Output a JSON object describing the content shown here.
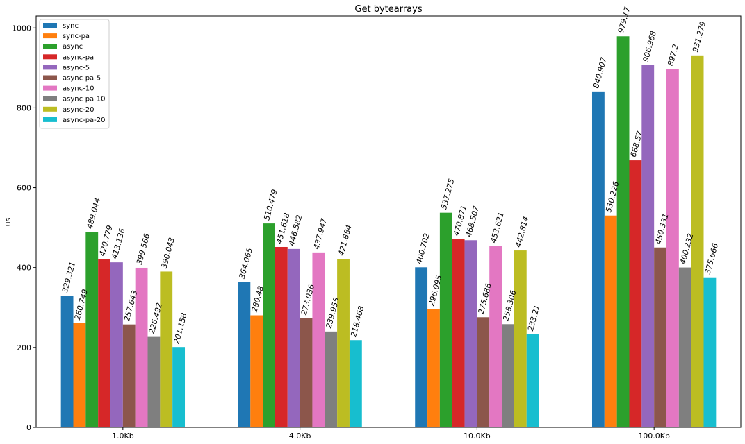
{
  "chart_data": {
    "type": "bar",
    "title": "Get bytearrays",
    "xlabel": "",
    "ylabel": "us",
    "ylim": [
      0,
      1030
    ],
    "yticks": [
      0,
      200,
      400,
      600,
      800,
      1000
    ],
    "legend_position": "top-left",
    "grid": false,
    "categories": [
      "1.0Kb",
      "4.0Kb",
      "10.0Kb",
      "100.0Kb"
    ],
    "series": [
      {
        "name": "sync",
        "color": "#1f77b4",
        "values": [
          329.321,
          364.065,
          400.702,
          840.907
        ],
        "labels": [
          "329.321",
          "364.065",
          "400.702",
          "840.907"
        ]
      },
      {
        "name": "sync-pa",
        "color": "#ff7f0e",
        "values": [
          260.749,
          280.48,
          296.095,
          530.226
        ],
        "labels": [
          "260.749",
          "280.48",
          "296.095",
          "530.226"
        ]
      },
      {
        "name": "async",
        "color": "#2ca02c",
        "values": [
          489.044,
          510.479,
          537.275,
          979.17
        ],
        "labels": [
          "489.044",
          "510.479",
          "537.275",
          "979.17"
        ]
      },
      {
        "name": "async-pa",
        "color": "#d62728",
        "values": [
          420.779,
          451.618,
          470.871,
          668.57
        ],
        "labels": [
          "420.779",
          "451.618",
          "470.871",
          "668.57"
        ]
      },
      {
        "name": "async-5",
        "color": "#9467bd",
        "values": [
          413.136,
          446.582,
          468.507,
          906.968
        ],
        "labels": [
          "413.136",
          "446.582",
          "468.507",
          "906.968"
        ]
      },
      {
        "name": "async-pa-5",
        "color": "#8c564b",
        "values": [
          257.643,
          273.036,
          275.686,
          450.331
        ],
        "labels": [
          "257.643",
          "273.036",
          "275.686",
          "450.331"
        ]
      },
      {
        "name": "async-10",
        "color": "#e377c2",
        "values": [
          399.566,
          437.947,
          453.621,
          897.2
        ],
        "labels": [
          "399.566",
          "437.947",
          "453.621",
          "897.2"
        ]
      },
      {
        "name": "async-pa-10",
        "color": "#7f7f7f",
        "values": [
          226.492,
          239.955,
          258.306,
          400.232
        ],
        "labels": [
          "226.492",
          "239.955",
          "258.306",
          "400.232"
        ]
      },
      {
        "name": "async-20",
        "color": "#bcbd22",
        "values": [
          390.043,
          421.884,
          442.814,
          931.279
        ],
        "labels": [
          "390.043",
          "421.884",
          "442.814",
          "931.279"
        ]
      },
      {
        "name": "async-pa-20",
        "color": "#17becf",
        "values": [
          201.158,
          218.468,
          233.21,
          375.666
        ],
        "labels": [
          "201.158",
          "218.468",
          "233.21",
          "375.666"
        ]
      }
    ]
  }
}
